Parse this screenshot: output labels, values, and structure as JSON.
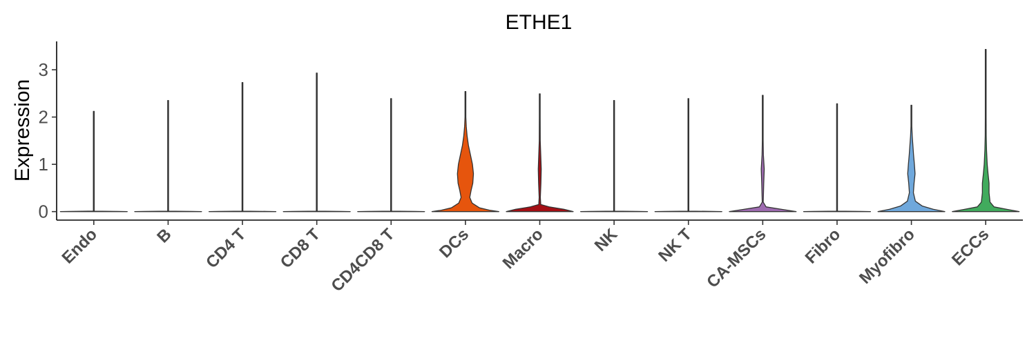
{
  "chart_data": {
    "type": "violin",
    "title": "ETHE1",
    "xlabel": "",
    "ylabel": "Expression",
    "ylim": [
      -0.18,
      3.6
    ],
    "yticks": [
      0,
      1,
      2,
      3
    ],
    "grid": false,
    "legend": "none",
    "categories": [
      "Endo",
      "B",
      "CD4 T",
      "CD8 T",
      "CD4CD8 T",
      "DCs",
      "Macro",
      "NK",
      "NK T",
      "CA-MSCs",
      "Fibro",
      "Myofibro",
      "ECCs"
    ],
    "series": [
      {
        "category": "Endo",
        "max": 2.12,
        "color": "#ffffff",
        "profile": [
          [
            0,
            1
          ],
          [
            0.004,
            0.72
          ],
          [
            0.01,
            0.012
          ],
          [
            2.12,
            0.004
          ]
        ]
      },
      {
        "category": "B",
        "max": 2.35,
        "color": "#ffffff",
        "profile": [
          [
            0,
            1
          ],
          [
            0.004,
            0.72
          ],
          [
            0.01,
            0.012
          ],
          [
            2.35,
            0.004
          ]
        ]
      },
      {
        "category": "CD4 T",
        "max": 2.73,
        "color": "#ffffff",
        "profile": [
          [
            0,
            1
          ],
          [
            0.004,
            0.72
          ],
          [
            0.01,
            0.012
          ],
          [
            2.73,
            0.004
          ]
        ]
      },
      {
        "category": "CD8 T",
        "max": 2.93,
        "color": "#ffffff",
        "profile": [
          [
            0,
            1
          ],
          [
            0.004,
            0.72
          ],
          [
            0.01,
            0.012
          ],
          [
            2.93,
            0.004
          ]
        ]
      },
      {
        "category": "CD4CD8 T",
        "max": 2.39,
        "color": "#ffffff",
        "profile": [
          [
            0,
            1
          ],
          [
            0.004,
            0.72
          ],
          [
            0.01,
            0.012
          ],
          [
            2.39,
            0.004
          ]
        ]
      },
      {
        "category": "DCs",
        "max": 2.54,
        "color": "#e6550d",
        "profile": [
          [
            0,
            1
          ],
          [
            0.03,
            0.72
          ],
          [
            0.08,
            0.42
          ],
          [
            0.18,
            0.2
          ],
          [
            0.3,
            0.13
          ],
          [
            0.45,
            0.17
          ],
          [
            0.6,
            0.22
          ],
          [
            0.8,
            0.24
          ],
          [
            1.0,
            0.21
          ],
          [
            1.2,
            0.15
          ],
          [
            1.4,
            0.09
          ],
          [
            1.6,
            0.05
          ],
          [
            1.8,
            0.025
          ],
          [
            2.0,
            0.012
          ],
          [
            2.54,
            0.004
          ]
        ]
      },
      {
        "category": "Macro",
        "max": 2.49,
        "color": "#a50f15",
        "profile": [
          [
            0,
            1
          ],
          [
            0.05,
            0.72
          ],
          [
            0.1,
            0.28
          ],
          [
            0.15,
            0.03
          ],
          [
            0.3,
            0.018
          ],
          [
            0.6,
            0.035
          ],
          [
            0.9,
            0.045
          ],
          [
            1.2,
            0.03
          ],
          [
            1.5,
            0.015
          ],
          [
            2.0,
            0.006
          ],
          [
            2.49,
            0.004
          ]
        ]
      },
      {
        "category": "NK",
        "max": 2.35,
        "color": "#ffffff",
        "profile": [
          [
            0,
            1
          ],
          [
            0.004,
            0.72
          ],
          [
            0.01,
            0.012
          ],
          [
            2.35,
            0.004
          ]
        ]
      },
      {
        "category": "NK T",
        "max": 2.39,
        "color": "#ffffff",
        "profile": [
          [
            0,
            1
          ],
          [
            0.004,
            0.72
          ],
          [
            0.01,
            0.012
          ],
          [
            2.39,
            0.004
          ]
        ]
      },
      {
        "category": "CA-MSCs",
        "max": 2.46,
        "color": "#9e6bb0",
        "profile": [
          [
            0,
            1
          ],
          [
            0.05,
            0.55
          ],
          [
            0.1,
            0.1
          ],
          [
            0.2,
            0.015
          ],
          [
            0.6,
            0.03
          ],
          [
            0.9,
            0.045
          ],
          [
            1.2,
            0.02
          ],
          [
            1.5,
            0.008
          ],
          [
            2.46,
            0.004
          ]
        ]
      },
      {
        "category": "Fibro",
        "max": 2.28,
        "color": "#ffffff",
        "profile": [
          [
            0,
            1
          ],
          [
            0.004,
            0.72
          ],
          [
            0.01,
            0.012
          ],
          [
            2.28,
            0.004
          ]
        ]
      },
      {
        "category": "Myofibro",
        "max": 2.25,
        "color": "#6fa8dc",
        "profile": [
          [
            0,
            1
          ],
          [
            0.05,
            0.65
          ],
          [
            0.12,
            0.32
          ],
          [
            0.22,
            0.12
          ],
          [
            0.4,
            0.06
          ],
          [
            0.6,
            0.08
          ],
          [
            0.8,
            0.11
          ],
          [
            1.0,
            0.09
          ],
          [
            1.2,
            0.065
          ],
          [
            1.4,
            0.045
          ],
          [
            1.6,
            0.025
          ],
          [
            1.8,
            0.012
          ],
          [
            2.25,
            0.004
          ]
        ]
      },
      {
        "category": "ECCs",
        "max": 3.43,
        "color": "#41ab5d",
        "profile": [
          [
            0,
            1
          ],
          [
            0.05,
            0.62
          ],
          [
            0.1,
            0.25
          ],
          [
            0.2,
            0.13
          ],
          [
            0.4,
            0.1
          ],
          [
            0.6,
            0.1
          ],
          [
            0.8,
            0.07
          ],
          [
            1.0,
            0.045
          ],
          [
            1.3,
            0.025
          ],
          [
            1.6,
            0.015
          ],
          [
            2.0,
            0.008
          ],
          [
            2.5,
            0.004
          ],
          [
            3.43,
            0.003
          ]
        ]
      }
    ]
  }
}
